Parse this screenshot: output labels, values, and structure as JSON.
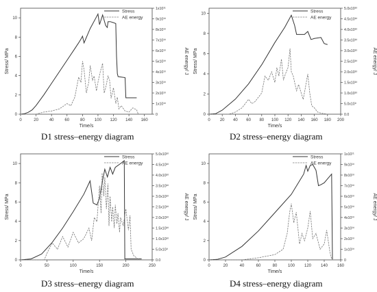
{
  "captions": {
    "d1": "D1 stress–energy diagram",
    "d2": "D2 stress–energy diagram",
    "d3": "D3 stress–energy diagram",
    "d4": "D4 stress–energy diagram"
  },
  "chart_data": [
    {
      "id": "d1",
      "type": "line",
      "caption": "D1 stress–energy diagram",
      "xlabel": "Time/s",
      "ylabel": "Stress/ MPa",
      "y2label": "AE energy/ J",
      "xlim": [
        0,
        170
      ],
      "xticks": [
        0,
        20,
        40,
        60,
        80,
        100,
        120,
        140,
        160
      ],
      "ylim": [
        0,
        11
      ],
      "yticks": [
        0,
        2,
        4,
        6,
        8,
        10
      ],
      "y2lim": [
        0,
        100000000000.0
      ],
      "y2ticks": [
        "0",
        "1x10¹⁰",
        "2x10¹⁰",
        "3x10¹⁰",
        "4x10¹⁰",
        "5x10¹⁰",
        "6x10¹⁰",
        "7x10¹⁰",
        "8x10¹⁰",
        "9x10¹⁰",
        "1x10¹¹"
      ],
      "legend": {
        "position": "top-right",
        "entries": [
          "Stress",
          "AE energy"
        ]
      },
      "series": [
        {
          "name": "Stress",
          "axis": "left",
          "style": "solid",
          "x": [
            0,
            5,
            10,
            15,
            20,
            30,
            40,
            50,
            60,
            70,
            75,
            78,
            80,
            82,
            90,
            98,
            100,
            102,
            106,
            110,
            112,
            113,
            116,
            120,
            123,
            124,
            125,
            126,
            135,
            136,
            150
          ],
          "y": [
            0,
            0.05,
            0.2,
            0.45,
            0.9,
            2.0,
            3.2,
            4.4,
            5.6,
            6.8,
            7.4,
            7.8,
            8.1,
            7.4,
            8.9,
            10.1,
            10.4,
            9.3,
            10.3,
            9.2,
            9.0,
            9.6,
            9.6,
            9.5,
            9.4,
            6.0,
            4.2,
            3.9,
            3.8,
            1.7,
            1.7
          ]
        },
        {
          "name": "AE energy",
          "axis": "right",
          "style": "dashed",
          "x": [
            0,
            20,
            30,
            40,
            50,
            60,
            65,
            70,
            75,
            78,
            80,
            82,
            85,
            88,
            90,
            93,
            95,
            98,
            100,
            103,
            106,
            108,
            110,
            113,
            115,
            117,
            120,
            123,
            125,
            127,
            130,
            135,
            140,
            145,
            150,
            152
          ],
          "y": [
            0,
            0,
            2000000000.0,
            3000000000.0,
            5000000000.0,
            10000000000.0,
            8000000000.0,
            16000000000.0,
            35000000000.0,
            30000000000.0,
            50000000000.0,
            42000000000.0,
            20000000000.0,
            30000000000.0,
            46000000000.0,
            32000000000.0,
            36000000000.0,
            22000000000.0,
            30000000000.0,
            40000000000.0,
            48000000000.0,
            20000000000.0,
            25000000000.0,
            36000000000.0,
            32000000000.0,
            15000000000.0,
            25000000000.0,
            10000000000.0,
            16000000000.0,
            5000000000.0,
            8000000000.0,
            3000000000.0,
            2000000000.0,
            6000000000.0,
            4000000000.0,
            0
          ]
        }
      ]
    },
    {
      "id": "d2",
      "type": "line",
      "caption": "D2 stress–energy diagram",
      "xlabel": "Time/s",
      "ylabel": "Stress/ MPa",
      "y2label": "AE energy/ J",
      "xlim": [
        0,
        200
      ],
      "xticks": [
        0,
        20,
        40,
        60,
        80,
        100,
        120,
        140,
        160,
        180,
        200
      ],
      "ylim": [
        0,
        10.5
      ],
      "yticks": [
        0,
        2,
        4,
        6,
        8,
        10
      ],
      "y2lim": [
        0,
        50000000000.0
      ],
      "y2ticks": [
        "0.0",
        "5.0x10⁹",
        "1.0x10¹⁰",
        "1.5x10¹⁰",
        "2.0x10¹⁰",
        "2.5x10¹⁰",
        "3.0x10¹⁰",
        "3.5x10¹⁰",
        "4.0x10¹⁰",
        "4.5x10¹⁰",
        "5.0x10¹⁰"
      ],
      "legend": {
        "position": "top-right",
        "entries": [
          "Stress",
          "AE energy"
        ]
      },
      "series": [
        {
          "name": "Stress",
          "axis": "left",
          "style": "solid",
          "x": [
            0,
            10,
            20,
            40,
            60,
            80,
            100,
            115,
            125,
            130,
            133,
            145,
            150,
            155,
            160,
            170,
            175,
            180
          ],
          "y": [
            0,
            0.05,
            0.4,
            1.5,
            3.0,
            4.9,
            7.1,
            8.6,
            9.8,
            8.8,
            7.9,
            7.9,
            8.2,
            7.4,
            7.5,
            7.6,
            7.0,
            6.9
          ]
        },
        {
          "name": "AE energy",
          "axis": "right",
          "style": "dashed",
          "x": [
            0,
            30,
            40,
            50,
            60,
            65,
            70,
            80,
            85,
            90,
            95,
            100,
            103,
            106,
            110,
            113,
            116,
            120,
            123,
            125,
            128,
            130,
            133,
            136,
            140,
            143,
            146,
            150,
            153,
            156,
            160,
            165,
            170,
            180
          ],
          "y": [
            0,
            0,
            1000000000.0,
            3000000000.0,
            7000000000.0,
            5000000000.0,
            6000000000.0,
            10000000000.0,
            18000000000.0,
            16000000000.0,
            20000000000.0,
            15000000000.0,
            22000000000.0,
            18000000000.0,
            26000000000.0,
            16000000000.0,
            19000000000.0,
            22000000000.0,
            31000000000.0,
            20000000000.0,
            18000000000.0,
            15000000000.0,
            11000000000.0,
            14000000000.0,
            10000000000.0,
            7000000000.0,
            12000000000.0,
            19000000000.0,
            10000000000.0,
            4000000000.0,
            3000000000.0,
            1000000000.0,
            500000000.0,
            0
          ]
        }
      ]
    },
    {
      "id": "d3",
      "type": "line",
      "caption": "D3 stress–energy diagram",
      "xlabel": "Time/s",
      "ylabel": "Stress/ MPa",
      "y2label": "AE energy/ J",
      "xlim": [
        0,
        250
      ],
      "xticks": [
        0,
        50,
        100,
        150,
        200,
        250
      ],
      "ylim": [
        0,
        11
      ],
      "yticks": [
        0,
        2,
        4,
        6,
        8,
        10
      ],
      "y2lim": [
        0,
        50000000000.0
      ],
      "y2ticks": [
        "0.0",
        "5.0x10⁹",
        "1.0x10¹⁰",
        "1.5x10¹⁰",
        "2.0x10¹⁰",
        "2.5x10¹⁰",
        "3.0x10¹⁰",
        "3.5x10¹⁰",
        "4.0x10¹⁰",
        "4.5x10¹⁰",
        "5.0x10¹⁰"
      ],
      "legend": {
        "position": "top-right",
        "entries": [
          "Stress",
          "AE energy"
        ]
      },
      "series": [
        {
          "name": "Stress",
          "axis": "left",
          "style": "solid",
          "x": [
            0,
            20,
            40,
            60,
            80,
            100,
            120,
            132,
            138,
            145,
            150,
            155,
            160,
            165,
            170,
            175,
            180,
            190,
            197,
            198,
            230
          ],
          "y": [
            0,
            0.1,
            0.6,
            1.8,
            3.3,
            5.0,
            6.8,
            8.2,
            5.9,
            5.7,
            6.4,
            8.0,
            9.4,
            8.6,
            9.6,
            8.9,
            9.6,
            10.0,
            10.3,
            0.1,
            0.1
          ]
        },
        {
          "name": "AE energy",
          "axis": "right",
          "style": "dashed",
          "x": [
            0,
            45,
            50,
            60,
            70,
            80,
            90,
            100,
            110,
            120,
            130,
            135,
            140,
            145,
            150,
            153,
            155,
            158,
            160,
            163,
            166,
            168,
            170,
            173,
            175,
            178,
            180,
            183,
            185,
            188,
            190,
            195,
            200,
            205,
            208,
            210,
            215,
            220,
            225
          ],
          "y": [
            0,
            0,
            3000000000.0,
            8000000000.0,
            5000000000.0,
            11000000000.0,
            6000000000.0,
            13000000000.0,
            8000000000.0,
            10000000000.0,
            15000000000.0,
            9000000000.0,
            20000000000.0,
            18000000000.0,
            35000000000.0,
            22000000000.0,
            41000000000.0,
            30000000000.0,
            39000000000.0,
            24000000000.0,
            36000000000.0,
            16000000000.0,
            30000000000.0,
            18000000000.0,
            25000000000.0,
            15000000000.0,
            26000000000.0,
            17000000000.0,
            22000000000.0,
            13000000000.0,
            20000000000.0,
            16000000000.0,
            24000000000.0,
            14000000000.0,
            21000000000.0,
            5000000000.0,
            2000000000.0,
            1000000000.0,
            0
          ]
        }
      ]
    },
    {
      "id": "d4",
      "type": "line",
      "caption": "D4 stress–energy diagram",
      "xlabel": "Time/s",
      "ylabel": "Stress/ MPa",
      "y2label": "AE energy/ J",
      "xlim": [
        0,
        160
      ],
      "xticks": [
        0,
        20,
        40,
        60,
        80,
        100,
        120,
        140,
        160
      ],
      "ylim": [
        0,
        11
      ],
      "yticks": [
        0,
        2,
        4,
        6,
        8,
        10
      ],
      "y2lim": [
        0,
        100000000000.0
      ],
      "y2ticks": [
        "0",
        "1x10¹⁰",
        "2x10¹⁰",
        "3x10¹⁰",
        "4x10¹⁰",
        "5x10¹⁰",
        "6x10¹⁰",
        "7x10¹⁰",
        "8x10¹⁰",
        "9x10¹⁰",
        "1x10¹¹"
      ],
      "legend": {
        "position": "top-right",
        "entries": [
          "Stress",
          "AE energy"
        ]
      },
      "series": [
        {
          "name": "Stress",
          "axis": "left",
          "style": "solid",
          "x": [
            0,
            10,
            20,
            40,
            60,
            80,
            100,
            110,
            115,
            118,
            120,
            123,
            126,
            130,
            133,
            136,
            140,
            145,
            149,
            150,
            150.5
          ],
          "y": [
            0,
            0.05,
            0.3,
            1.4,
            3.0,
            4.9,
            6.8,
            8.2,
            8.9,
            9.8,
            9.2,
            9.8,
            9.9,
            9.3,
            7.7,
            7.8,
            8.0,
            8.5,
            8.9,
            0.1,
            0.1
          ]
        },
        {
          "name": "AE energy",
          "axis": "right",
          "style": "dashed",
          "x": [
            0,
            40,
            60,
            80,
            90,
            95,
            98,
            100,
            103,
            106,
            110,
            113,
            116,
            120,
            123,
            126,
            130,
            135,
            140,
            143,
            146,
            148,
            150
          ],
          "y": [
            0,
            0,
            2000000000.0,
            5000000000.0,
            10000000000.0,
            25000000000.0,
            45000000000.0,
            53000000000.0,
            35000000000.0,
            45000000000.0,
            15000000000.0,
            25000000000.0,
            18000000000.0,
            30000000000.0,
            46000000000.0,
            20000000000.0,
            25000000000.0,
            10000000000.0,
            15000000000.0,
            28000000000.0,
            12000000000.0,
            3000000000.0,
            0
          ]
        }
      ]
    }
  ]
}
